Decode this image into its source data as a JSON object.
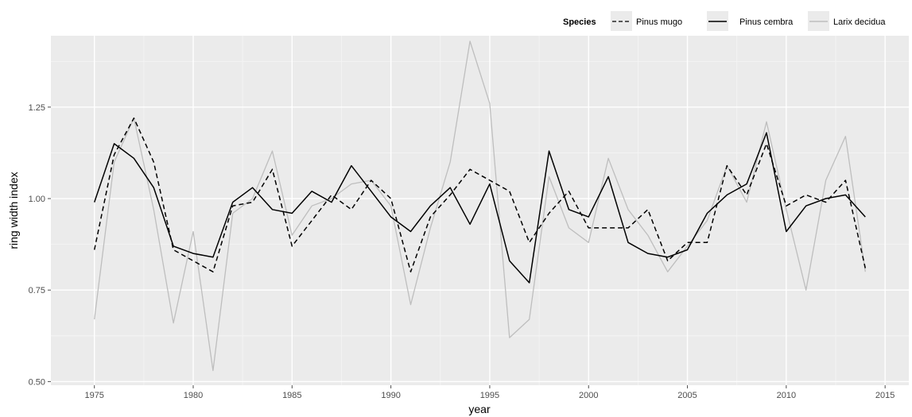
{
  "chart_data": {
    "type": "line",
    "xlabel": "year",
    "ylabel": "ring width index",
    "xlim": [
      1972.8,
      2016.2
    ],
    "ylim": [
      0.49,
      1.445
    ],
    "xticks": [
      1975,
      1980,
      1985,
      1990,
      1995,
      2000,
      2005,
      2010,
      2015
    ],
    "yticks": [
      0.5,
      0.75,
      1.0,
      1.25
    ],
    "ytick_labels": [
      "0.50",
      "0.75",
      "1.00",
      "1.25"
    ],
    "grid": true,
    "background_color": "#ebebeb",
    "legend": {
      "title": "Species",
      "position": "top-right",
      "entries": [
        "Pinus mugo",
        "Pinus cembra",
        "Larix decidua"
      ]
    },
    "x": [
      1975,
      1976,
      1977,
      1978,
      1979,
      1980,
      1981,
      1982,
      1983,
      1984,
      1985,
      1986,
      1987,
      1988,
      1989,
      1990,
      1991,
      1992,
      1993,
      1994,
      1995,
      1996,
      1997,
      1998,
      1999,
      2000,
      2001,
      2002,
      2003,
      2004,
      2005,
      2006,
      2007,
      2008,
      2009,
      2010,
      2011,
      2012,
      2013,
      2014
    ],
    "series": [
      {
        "name": "Pinus mugo",
        "style": "dashed",
        "color": "#000000",
        "values": [
          0.86,
          1.12,
          1.22,
          1.1,
          0.86,
          0.83,
          0.8,
          0.98,
          0.99,
          1.08,
          0.87,
          0.94,
          1.01,
          0.97,
          1.05,
          1.0,
          0.8,
          0.95,
          1.01,
          1.08,
          1.05,
          1.02,
          0.88,
          0.96,
          1.02,
          0.92,
          0.92,
          0.92,
          0.97,
          0.83,
          0.88,
          0.88,
          1.09,
          1.01,
          1.15,
          0.98,
          1.01,
          0.99,
          1.05,
          0.81
        ]
      },
      {
        "name": "Pinus cembra",
        "style": "solid",
        "color": "#000000",
        "values": [
          0.99,
          1.15,
          1.11,
          1.03,
          0.87,
          0.85,
          0.84,
          0.99,
          1.03,
          0.97,
          0.96,
          1.02,
          0.99,
          1.09,
          1.02,
          0.95,
          0.91,
          0.98,
          1.03,
          0.93,
          1.04,
          0.83,
          0.77,
          1.13,
          0.97,
          0.95,
          1.06,
          0.88,
          0.85,
          0.84,
          0.86,
          0.96,
          1.01,
          1.04,
          1.18,
          0.91,
          0.98,
          1.0,
          1.01,
          0.95
        ]
      },
      {
        "name": "Larix decidua",
        "style": "solid",
        "color": "#bebebe",
        "values": [
          0.67,
          1.1,
          1.22,
          0.97,
          0.66,
          0.91,
          0.53,
          0.96,
          1.0,
          1.13,
          0.9,
          0.98,
          1.0,
          1.04,
          1.05,
          0.98,
          0.71,
          0.92,
          1.1,
          1.43,
          1.26,
          0.62,
          0.67,
          1.06,
          0.92,
          0.88,
          1.11,
          0.97,
          0.9,
          0.8,
          0.87,
          0.94,
          1.09,
          0.99,
          1.21,
          0.97,
          0.75,
          1.05,
          1.17,
          0.8
        ]
      }
    ]
  }
}
